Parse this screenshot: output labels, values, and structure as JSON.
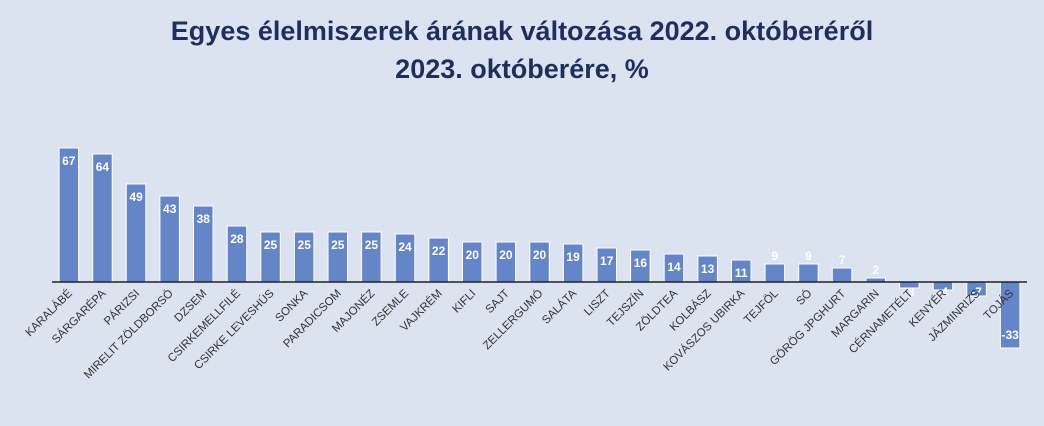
{
  "chart_data": {
    "type": "bar",
    "title_line1": "Egyes élelmiszerek árának változása 2022. októberéről",
    "title_line2": "2023. októberére, %",
    "xlabel": "",
    "ylabel": "",
    "ylim": [
      -35,
      70
    ],
    "grid": false,
    "categories": [
      "KARALÁBÉ",
      "SÁRGARÉPA",
      "PÁRIZSI",
      "MIRELIT ZÖLDBORSÓ",
      "DZSEM",
      "CSIRKEMELLFILÉ",
      "CSIRKE LEVESHÚS",
      "SONKA",
      "PARADICSOM",
      "MAJONÉZ",
      "ZSEMLE",
      "VAJKRÉM",
      "KIFLI",
      "SAJT",
      "ZELLERGUMÓ",
      "SALÁTA",
      "LISZT",
      "TEJSZÍN",
      "ZÖLDTEA",
      "KOLBÁSZ",
      "KOVÁSZOS UBIRKA",
      "TEJFÖL",
      "SÓ",
      "GÖRÖG JPGHURT",
      "MARGARIN",
      "CÉRNAMETÉLT",
      "KENYÉR",
      "JÁZMINRIZS",
      "TOJÁS"
    ],
    "values": [
      67,
      64,
      49,
      43,
      38,
      28,
      25,
      25,
      25,
      25,
      24,
      22,
      20,
      20,
      20,
      19,
      17,
      16,
      14,
      13,
      11,
      9,
      9,
      7,
      2,
      -3,
      -4,
      -7,
      -33
    ],
    "colors": {
      "bar": "#6486c8",
      "background": "#dbe3f1",
      "title": "#1f2f5c"
    }
  }
}
